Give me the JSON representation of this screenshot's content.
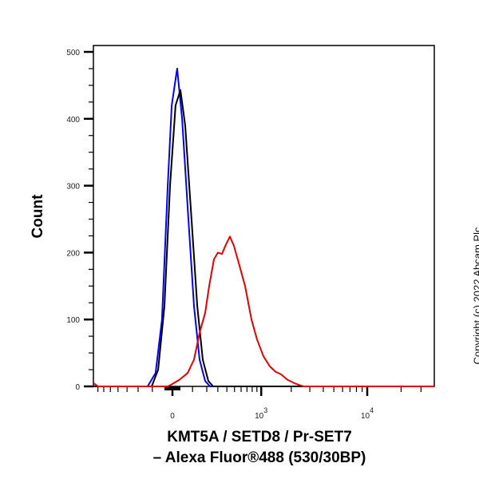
{
  "chart_data": {
    "type": "line",
    "title": "",
    "xlabel_line1": "KMT5A / SETD8 / Pr-SET7",
    "xlabel_line2": "– Alexa Fluor®488 (530/30BP)",
    "ylabel": "Count",
    "x_scale": "biexponential",
    "xlim": [
      -786,
      39000
    ],
    "ylim": [
      0,
      510
    ],
    "y_ticks": [
      0,
      100,
      200,
      300,
      400,
      500
    ],
    "x_ticks": [
      {
        "value": 0,
        "base": "0",
        "exp": ""
      },
      {
        "value": 1000,
        "base": "10",
        "exp": "3"
      },
      {
        "value": 10000,
        "base": "10",
        "exp": "4"
      }
    ],
    "grid": false,
    "legend": "none",
    "series": [
      {
        "color": "#0000ff",
        "x": [
          -786,
          -130,
          -81,
          -47,
          -20,
          -3,
          20,
          43,
          76,
          109,
          146,
          187,
          227,
          39000
        ],
        "y": [
          0,
          0,
          20,
          100,
          300,
          420,
          475,
          400,
          250,
          120,
          40,
          8,
          0,
          0
        ]
      },
      {
        "color": "#000000",
        "x": [
          -786,
          -104,
          -67,
          -35,
          -10,
          13,
          35,
          59,
          94,
          130,
          169,
          213,
          255,
          39000
        ],
        "y": [
          0,
          0,
          25,
          120,
          300,
          420,
          443,
          390,
          250,
          120,
          40,
          8,
          0,
          0
        ]
      },
      {
        "color": "#e00000",
        "x": [
          -786,
          -700,
          -20,
          -3,
          31,
          72,
          109,
          146,
          187,
          220,
          262,
          301,
          343,
          389,
          438,
          492,
          575,
          667,
          786,
          904,
          1056,
          1228,
          1400,
          1590,
          1836,
          2194,
          2612,
          39000
        ],
        "y": [
          5,
          0,
          0,
          3,
          10,
          20,
          40,
          80,
          110,
          150,
          190,
          200,
          198,
          212,
          224,
          210,
          180,
          150,
          100,
          70,
          45,
          30,
          22,
          18,
          10,
          4,
          0,
          0
        ]
      }
    ]
  },
  "copyright": "Copyright (c) 2022 Abcam Plc"
}
